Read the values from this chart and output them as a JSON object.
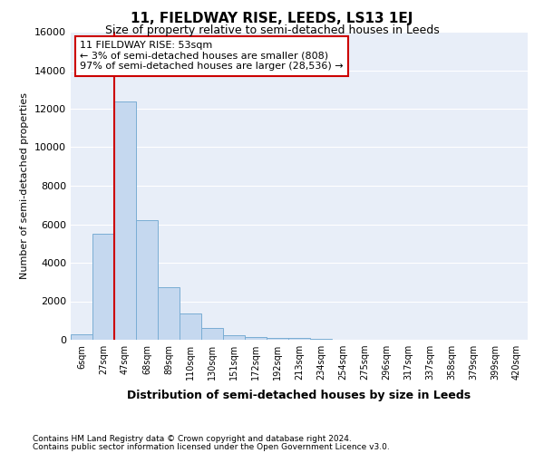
{
  "title": "11, FIELDWAY RISE, LEEDS, LS13 1EJ",
  "subtitle": "Size of property relative to semi-detached houses in Leeds",
  "xlabel": "Distribution of semi-detached houses by size in Leeds",
  "ylabel": "Number of semi-detached properties",
  "footnote1": "Contains HM Land Registry data © Crown copyright and database right 2024.",
  "footnote2": "Contains public sector information licensed under the Open Government Licence v3.0.",
  "annotation_line1": "11 FIELDWAY RISE: 53sqm",
  "annotation_line2": "← 3% of semi-detached houses are smaller (808)",
  "annotation_line3": "97% of semi-detached houses are larger (28,536) →",
  "bin_labels": [
    "6sqm",
    "27sqm",
    "47sqm",
    "68sqm",
    "89sqm",
    "110sqm",
    "130sqm",
    "151sqm",
    "172sqm",
    "192sqm",
    "213sqm",
    "234sqm",
    "254sqm",
    "275sqm",
    "296sqm",
    "317sqm",
    "337sqm",
    "358sqm",
    "379sqm",
    "399sqm",
    "420sqm"
  ],
  "bar_values": [
    300,
    5500,
    12400,
    6200,
    2750,
    1350,
    600,
    250,
    150,
    100,
    100,
    50,
    0,
    0,
    0,
    0,
    0,
    0,
    0,
    0,
    0
  ],
  "bar_color": "#c5d8ef",
  "bar_edge_color": "#7aadd4",
  "red_line_bin": 2,
  "line_color": "#cc0000",
  "annotation_box_edge_color": "#cc0000",
  "background_color": "#e8eef8",
  "grid_color": "#ffffff",
  "ylim": [
    0,
    16000
  ],
  "yticks": [
    0,
    2000,
    4000,
    6000,
    8000,
    10000,
    12000,
    14000,
    16000
  ],
  "title_fontsize": 11,
  "subtitle_fontsize": 9,
  "ylabel_fontsize": 8,
  "tick_fontsize": 8,
  "xtick_fontsize": 7,
  "annotation_fontsize": 8
}
